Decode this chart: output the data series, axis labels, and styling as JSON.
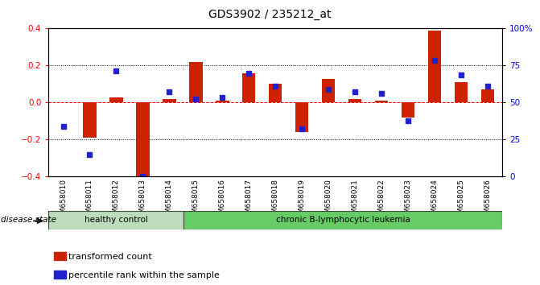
{
  "title": "GDS3902 / 235212_at",
  "samples": [
    "GSM658010",
    "GSM658011",
    "GSM658012",
    "GSM658013",
    "GSM658014",
    "GSM658015",
    "GSM658016",
    "GSM658017",
    "GSM658018",
    "GSM658019",
    "GSM658020",
    "GSM658021",
    "GSM658022",
    "GSM658023",
    "GSM658024",
    "GSM658025",
    "GSM658026"
  ],
  "red_values": [
    0.0,
    -0.19,
    0.03,
    -0.42,
    0.02,
    0.22,
    0.01,
    0.16,
    0.1,
    -0.16,
    0.13,
    0.02,
    0.01,
    -0.08,
    0.39,
    0.11,
    0.07
  ],
  "blue_values": [
    -0.13,
    -0.28,
    0.17,
    -0.4,
    0.06,
    0.02,
    0.03,
    0.16,
    0.09,
    -0.14,
    0.07,
    0.06,
    0.05,
    -0.1,
    0.23,
    0.15,
    0.09
  ],
  "ylim_left": [
    -0.4,
    0.4
  ],
  "ylim_right": [
    0,
    100
  ],
  "yticks_left": [
    -0.4,
    -0.2,
    0.0,
    0.2,
    0.4
  ],
  "yticks_right": [
    0,
    25,
    50,
    75,
    100
  ],
  "group1_label": "healthy control",
  "group2_label": "chronic B-lymphocytic leukemia",
  "group1_count": 5,
  "group2_count": 12,
  "legend1": "transformed count",
  "legend2": "percentile rank within the sample",
  "disease_state_label": "disease state",
  "bar_color_red": "#cc2200",
  "bar_color_blue": "#2222cc",
  "bar_width": 0.5,
  "group_bg1": "#bbddbb",
  "group_bg2": "#66cc66",
  "tick_label_size": 6.5,
  "title_fontsize": 10
}
